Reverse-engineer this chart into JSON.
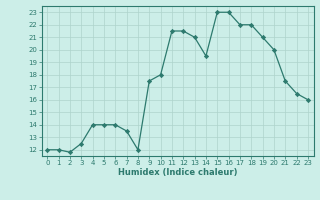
{
  "xlabel": "Humidex (Indice chaleur)",
  "x": [
    0,
    1,
    2,
    3,
    4,
    5,
    6,
    7,
    8,
    9,
    10,
    11,
    12,
    13,
    14,
    15,
    16,
    17,
    18,
    19,
    20,
    21,
    22,
    23
  ],
  "y": [
    12,
    12,
    11.8,
    12.5,
    14,
    14,
    14,
    13.5,
    12,
    17.5,
    18,
    21.5,
    21.5,
    21,
    19.5,
    23,
    23,
    22,
    22,
    21,
    20,
    17.5,
    16.5,
    16
  ],
  "line_color": "#2d7a6e",
  "marker": "D",
  "marker_size": 2.2,
  "bg_color": "#cceee8",
  "grid_color": "#aed4cc",
  "tick_color": "#2d7a6e",
  "label_color": "#2d7a6e",
  "ylim": [
    11.5,
    23.5
  ],
  "xlim": [
    -0.5,
    23.5
  ],
  "yticks": [
    12,
    13,
    14,
    15,
    16,
    17,
    18,
    19,
    20,
    21,
    22,
    23
  ],
  "xticks": [
    0,
    1,
    2,
    3,
    4,
    5,
    6,
    7,
    8,
    9,
    10,
    11,
    12,
    13,
    14,
    15,
    16,
    17,
    18,
    19,
    20,
    21,
    22,
    23
  ]
}
